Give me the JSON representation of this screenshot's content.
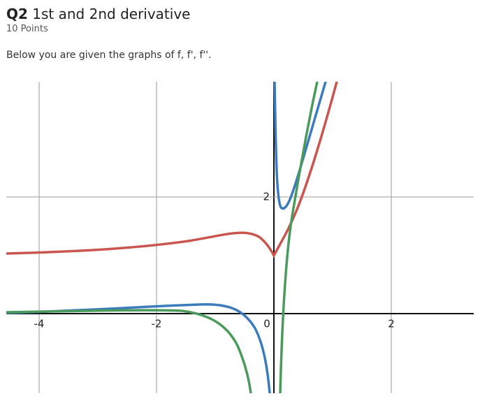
{
  "question": {
    "number": "Q2",
    "title": "1st and 2nd derivative",
    "points": "10 Points",
    "prompt": "Below you are given the graphs of f, f', f''."
  },
  "graph": {
    "xticks": [
      -4,
      -2,
      0,
      2
    ],
    "yticks": [
      2
    ]
  }
}
